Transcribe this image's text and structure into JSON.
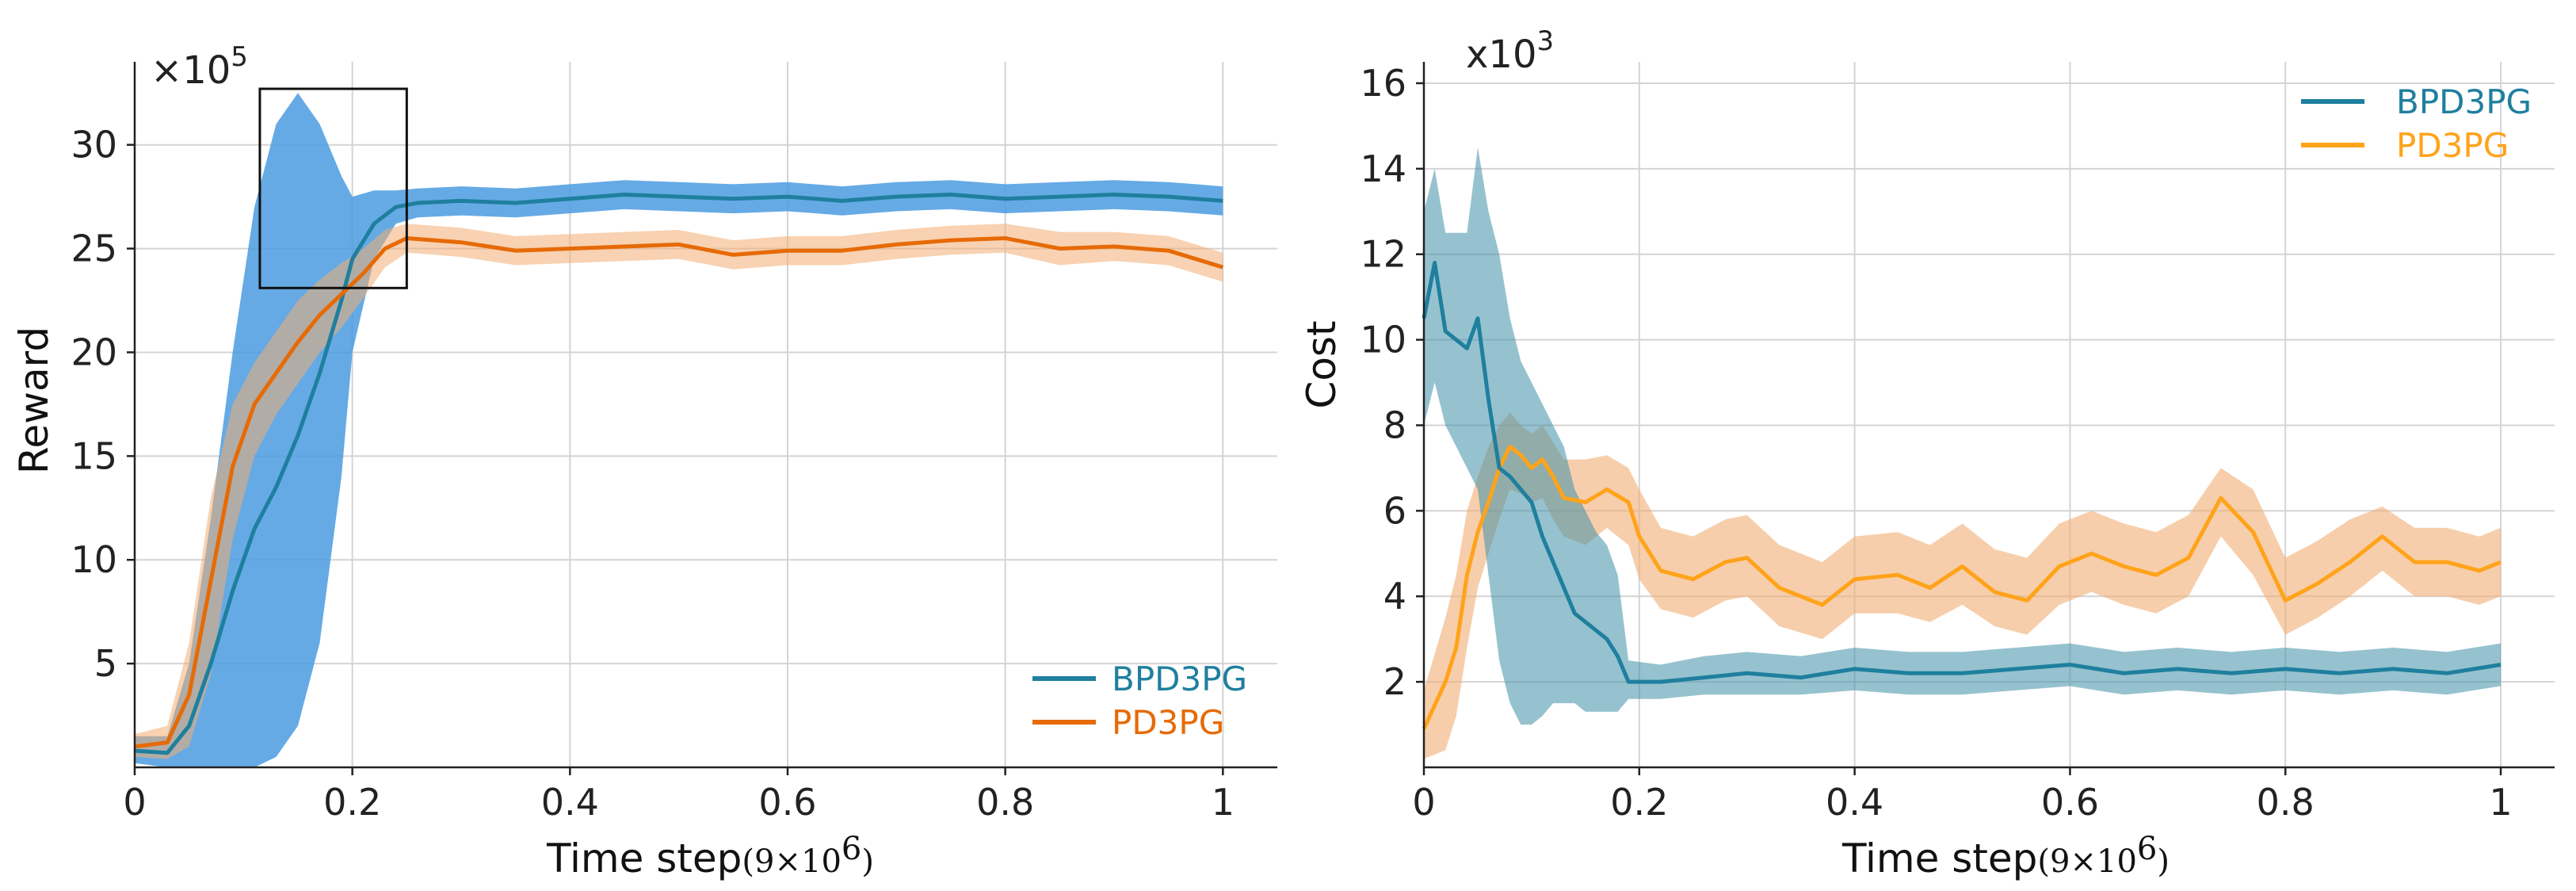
{
  "colors": {
    "bpd3pg": "#1f7f9e",
    "pd3pg_left": "#e66a06",
    "pd3pg_right": "#ffa31a",
    "bpd3pg_band_left": "#4a9be0",
    "pd3pg_band": "#f2ad73",
    "bpd3pg_band_right": "#3f8fa8"
  },
  "chart_data": [
    {
      "type": "line",
      "ylabel": "Reward",
      "xlabel": "Time step",
      "x_unit": "(9×10",
      "x_unit_exp": "6",
      "x_unit_close": ")",
      "scale_base": "×10",
      "scale_exp": "5",
      "xlim": [
        0,
        1.05
      ],
      "ylim": [
        0,
        34
      ],
      "xticks": [
        0,
        0.2,
        0.4,
        0.6,
        0.8,
        1
      ],
      "xtick_labels": [
        "0",
        "0.2",
        "0.4",
        "0.6",
        "0.8",
        "1"
      ],
      "yticks": [
        5,
        10,
        15,
        20,
        25,
        30
      ],
      "ytick_labels": [
        "5",
        "10",
        "15",
        "20",
        "25",
        "30"
      ],
      "zoom_box": {
        "x0": 0.115,
        "x1": 0.25,
        "y0": 23.1,
        "y1": 32.7
      },
      "legend": {
        "position": "bottom-right",
        "entries": [
          "BPD3PG",
          "PD3PG"
        ]
      },
      "series": [
        {
          "name": "BPD3PG",
          "x": [
            0,
            0.03,
            0.05,
            0.07,
            0.09,
            0.11,
            0.13,
            0.15,
            0.17,
            0.19,
            0.2,
            0.22,
            0.24,
            0.26,
            0.3,
            0.35,
            0.4,
            0.45,
            0.5,
            0.55,
            0.6,
            0.65,
            0.7,
            0.75,
            0.8,
            0.85,
            0.9,
            0.95,
            1.0
          ],
          "values": [
            0.8,
            0.7,
            2.0,
            5.0,
            8.5,
            11.5,
            13.5,
            16.0,
            19.0,
            22.5,
            24.5,
            26.2,
            27.0,
            27.2,
            27.3,
            27.2,
            27.4,
            27.6,
            27.5,
            27.4,
            27.5,
            27.3,
            27.5,
            27.6,
            27.4,
            27.5,
            27.6,
            27.5,
            27.3
          ],
          "upper": [
            1.5,
            1.5,
            5.0,
            12.0,
            20.0,
            27.0,
            31.0,
            32.5,
            31.0,
            28.5,
            27.5,
            27.8,
            27.8,
            27.9,
            28.0,
            27.9,
            28.1,
            28.3,
            28.2,
            28.1,
            28.2,
            28.0,
            28.2,
            28.3,
            28.1,
            28.2,
            28.3,
            28.2,
            28.0
          ],
          "lower": [
            0.2,
            0.0,
            0.0,
            0.0,
            0.0,
            0.0,
            0.5,
            2.0,
            6.0,
            14.0,
            20.0,
            24.5,
            26.2,
            26.5,
            26.6,
            26.5,
            26.7,
            26.9,
            26.8,
            26.7,
            26.8,
            26.6,
            26.8,
            26.9,
            26.7,
            26.8,
            26.9,
            26.8,
            26.6
          ]
        },
        {
          "name": "PD3PG",
          "x": [
            0,
            0.03,
            0.05,
            0.07,
            0.09,
            0.11,
            0.13,
            0.15,
            0.17,
            0.19,
            0.21,
            0.23,
            0.25,
            0.3,
            0.35,
            0.4,
            0.45,
            0.5,
            0.55,
            0.6,
            0.65,
            0.7,
            0.75,
            0.8,
            0.85,
            0.9,
            0.95,
            1.0
          ],
          "values": [
            1.0,
            1.2,
            3.5,
            9.0,
            14.5,
            17.5,
            19.0,
            20.5,
            21.8,
            22.8,
            23.8,
            25.0,
            25.5,
            25.3,
            24.9,
            25.0,
            25.1,
            25.2,
            24.7,
            24.9,
            24.9,
            25.2,
            25.4,
            25.5,
            25.0,
            25.1,
            24.9,
            24.1
          ],
          "upper": [
            1.6,
            2.0,
            6.0,
            13.0,
            17.5,
            19.5,
            21.0,
            22.5,
            23.5,
            24.3,
            25.0,
            25.9,
            26.2,
            26.0,
            25.6,
            25.7,
            25.8,
            25.9,
            25.4,
            25.6,
            25.6,
            25.9,
            26.1,
            26.2,
            25.8,
            25.8,
            25.6,
            24.8
          ],
          "lower": [
            0.5,
            0.4,
            1.0,
            4.5,
            11.0,
            15.0,
            17.0,
            18.5,
            20.0,
            21.2,
            22.6,
            24.1,
            24.8,
            24.6,
            24.2,
            24.3,
            24.4,
            24.5,
            24.0,
            24.2,
            24.2,
            24.5,
            24.7,
            24.8,
            24.2,
            24.4,
            24.2,
            23.4
          ]
        }
      ]
    },
    {
      "type": "line",
      "ylabel": "Cost",
      "xlabel": "Time step",
      "x_unit": "(9×10",
      "x_unit_exp": "6",
      "x_unit_close": ")",
      "scale_base": "x10",
      "scale_exp": "3",
      "xlim": [
        0,
        1.05
      ],
      "ylim": [
        0,
        16.5
      ],
      "xticks": [
        0,
        0.2,
        0.4,
        0.6,
        0.8,
        1
      ],
      "xtick_labels": [
        "0",
        "0.2",
        "0.4",
        "0.6",
        "0.8",
        "1"
      ],
      "yticks": [
        2,
        4,
        6,
        8,
        10,
        12,
        14,
        16
      ],
      "ytick_labels": [
        "2",
        "4",
        "6",
        "8",
        "10",
        "12",
        "14",
        "16"
      ],
      "legend": {
        "position": "top-right",
        "entries": [
          "BPD3PG",
          "PD3PG"
        ]
      },
      "series": [
        {
          "name": "BPD3PG",
          "x": [
            0,
            0.01,
            0.02,
            0.04,
            0.05,
            0.06,
            0.07,
            0.08,
            0.09,
            0.1,
            0.11,
            0.12,
            0.13,
            0.14,
            0.15,
            0.16,
            0.17,
            0.18,
            0.19,
            0.22,
            0.26,
            0.3,
            0.35,
            0.4,
            0.45,
            0.5,
            0.55,
            0.6,
            0.65,
            0.7,
            0.75,
            0.8,
            0.85,
            0.9,
            0.95,
            1.0
          ],
          "values": [
            10.5,
            11.8,
            10.2,
            9.8,
            10.5,
            8.6,
            7.0,
            6.8,
            6.5,
            6.2,
            5.4,
            4.8,
            4.2,
            3.6,
            3.4,
            3.2,
            3.0,
            2.6,
            2.0,
            2.0,
            2.1,
            2.2,
            2.1,
            2.3,
            2.2,
            2.2,
            2.3,
            2.4,
            2.2,
            2.3,
            2.2,
            2.3,
            2.2,
            2.3,
            2.2,
            2.4
          ],
          "upper": [
            13.0,
            14.0,
            12.5,
            12.5,
            14.5,
            13.0,
            12.0,
            10.5,
            9.5,
            9.0,
            8.5,
            8.0,
            7.5,
            6.5,
            6.0,
            5.5,
            5.2,
            4.5,
            2.5,
            2.4,
            2.6,
            2.7,
            2.6,
            2.8,
            2.7,
            2.7,
            2.8,
            2.9,
            2.7,
            2.8,
            2.7,
            2.8,
            2.7,
            2.8,
            2.7,
            2.9
          ],
          "lower": [
            8.0,
            9.0,
            8.0,
            7.0,
            6.5,
            4.5,
            2.5,
            1.5,
            1.0,
            1.0,
            1.2,
            1.5,
            1.5,
            1.5,
            1.3,
            1.3,
            1.3,
            1.3,
            1.6,
            1.6,
            1.7,
            1.7,
            1.7,
            1.8,
            1.7,
            1.7,
            1.8,
            1.9,
            1.7,
            1.8,
            1.7,
            1.8,
            1.7,
            1.8,
            1.7,
            1.9
          ]
        },
        {
          "name": "PD3PG",
          "x": [
            0,
            0.02,
            0.03,
            0.04,
            0.05,
            0.06,
            0.07,
            0.08,
            0.09,
            0.1,
            0.11,
            0.12,
            0.13,
            0.15,
            0.17,
            0.19,
            0.2,
            0.22,
            0.25,
            0.28,
            0.3,
            0.33,
            0.37,
            0.4,
            0.44,
            0.47,
            0.5,
            0.53,
            0.56,
            0.59,
            0.62,
            0.65,
            0.68,
            0.71,
            0.74,
            0.77,
            0.8,
            0.83,
            0.86,
            0.89,
            0.92,
            0.95,
            0.98,
            1.0
          ],
          "values": [
            0.9,
            2.0,
            2.8,
            4.5,
            5.5,
            6.2,
            7.0,
            7.5,
            7.3,
            7.0,
            7.2,
            6.8,
            6.3,
            6.2,
            6.5,
            6.2,
            5.4,
            4.6,
            4.4,
            4.8,
            4.9,
            4.2,
            3.8,
            4.4,
            4.5,
            4.2,
            4.7,
            4.1,
            3.9,
            4.7,
            5.0,
            4.7,
            4.5,
            4.9,
            6.3,
            5.5,
            3.9,
            4.3,
            4.8,
            5.4,
            4.8,
            4.8,
            4.6,
            4.8
          ],
          "upper": [
            1.8,
            3.5,
            4.5,
            6.0,
            6.8,
            7.5,
            8.0,
            8.3,
            8.0,
            7.8,
            8.0,
            7.6,
            7.2,
            7.2,
            7.3,
            7.0,
            6.5,
            5.6,
            5.4,
            5.8,
            5.9,
            5.2,
            4.8,
            5.4,
            5.5,
            5.2,
            5.7,
            5.1,
            4.9,
            5.7,
            6.0,
            5.7,
            5.5,
            5.9,
            7.0,
            6.5,
            4.9,
            5.3,
            5.8,
            6.1,
            5.6,
            5.6,
            5.4,
            5.6
          ],
          "lower": [
            0.2,
            0.4,
            1.2,
            2.8,
            4.2,
            5.0,
            5.8,
            6.5,
            6.4,
            6.2,
            6.3,
            5.8,
            5.4,
            5.2,
            5.6,
            5.2,
            4.4,
            3.7,
            3.5,
            3.9,
            4.0,
            3.3,
            3.0,
            3.6,
            3.6,
            3.4,
            3.8,
            3.3,
            3.1,
            3.8,
            4.1,
            3.8,
            3.6,
            4.0,
            5.4,
            4.5,
            3.1,
            3.5,
            4.0,
            4.6,
            4.0,
            4.0,
            3.8,
            4.0
          ]
        }
      ]
    }
  ]
}
